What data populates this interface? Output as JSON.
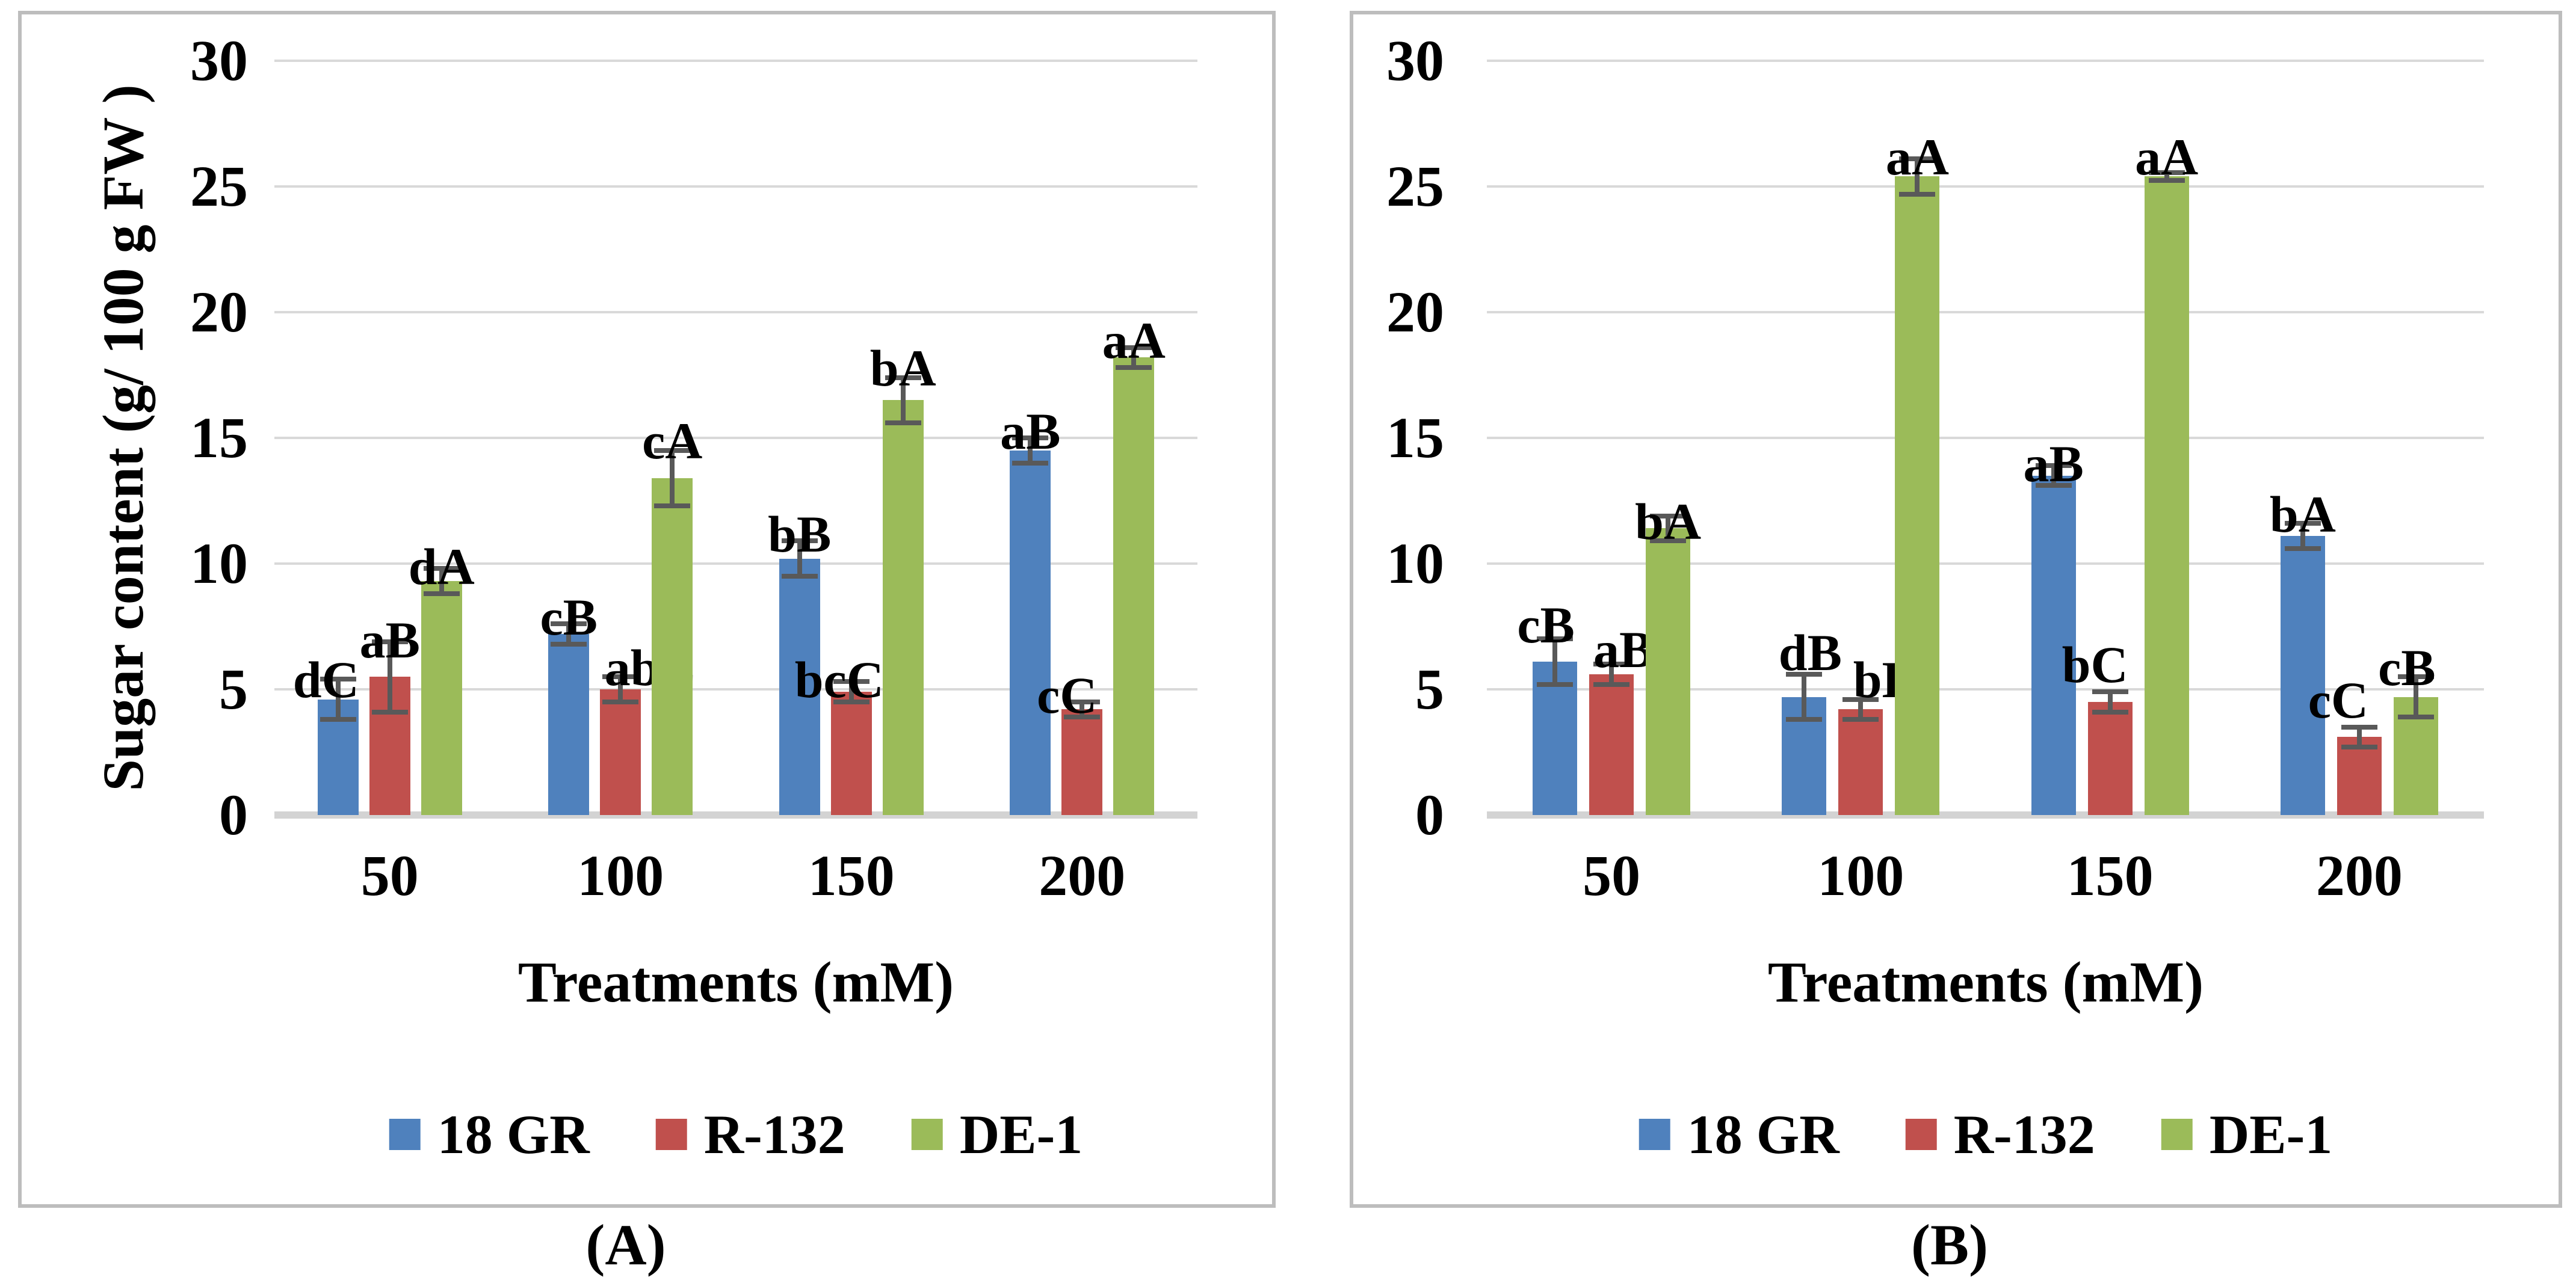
{
  "figure": {
    "captions": {
      "a": "(A)",
      "b": "(B)"
    },
    "colors": {
      "series_18gr": "#4F81BD",
      "series_r132": "#C0504D",
      "series_de1": "#9BBB59",
      "gridline": "#D9D9D9",
      "baseline": "#D3D3D3",
      "error_bar": "#595959",
      "panel_border": "#BDBDBD",
      "text": "#000000",
      "background": "#FFFFFF"
    }
  },
  "chart_data": [
    {
      "id": "A",
      "type": "bar",
      "title": "",
      "xlabel": "Treatments (mM)",
      "ylabel": "Sugar content (g/ 100 g FW )",
      "ylim": [
        0,
        30
      ],
      "yticks": [
        0,
        5,
        10,
        15,
        20,
        25,
        30
      ],
      "grid": true,
      "legend_position": "bottom",
      "categories": [
        "50",
        "100",
        "150",
        "200"
      ],
      "series": [
        {
          "name": "18 GR",
          "color": "#4F81BD",
          "values": [
            4.6,
            7.2,
            10.2,
            14.5
          ],
          "errors": [
            0.8,
            0.4,
            0.7,
            0.5
          ],
          "letters": [
            "dC",
            "cB",
            "bB",
            "aB"
          ],
          "letter_y": [
            6.4,
            8.9,
            12.2,
            16.3
          ],
          "letter_dx": [
            -20,
            0,
            0,
            0
          ]
        },
        {
          "name": "R-132",
          "color": "#C0504D",
          "values": [
            5.5,
            5.0,
            4.9,
            4.2
          ],
          "errors": [
            1.4,
            0.5,
            0.4,
            0.3
          ],
          "letters": [
            "aB",
            "abC",
            "bcC",
            "cC"
          ],
          "letter_y": [
            8.0,
            6.9,
            6.4,
            5.8
          ],
          "letter_dx": [
            0,
            50,
            -20,
            -25
          ]
        },
        {
          "name": "DE-1",
          "color": "#9BBB59",
          "values": [
            9.3,
            13.4,
            16.5,
            18.2
          ],
          "errors": [
            0.5,
            1.1,
            0.9,
            0.4
          ],
          "letters": [
            "dA",
            "cA",
            "bA",
            "aA"
          ],
          "letter_y": [
            10.9,
            15.9,
            18.8,
            19.9
          ],
          "letter_dx": [
            0,
            0,
            0,
            0
          ]
        }
      ],
      "caption": "(A)"
    },
    {
      "id": "B",
      "type": "bar",
      "title": "",
      "xlabel": "Treatments (mM)",
      "ylabel": "",
      "ylim": [
        0,
        30
      ],
      "yticks": [
        0,
        5,
        10,
        15,
        20,
        25,
        30
      ],
      "grid": true,
      "legend_position": "bottom",
      "categories": [
        "50",
        "100",
        "150",
        "200"
      ],
      "series": [
        {
          "name": "18 GR",
          "color": "#4F81BD",
          "values": [
            6.1,
            4.7,
            13.5,
            11.1
          ],
          "errors": [
            0.9,
            0.9,
            0.4,
            0.5
          ],
          "letters": [
            "cB",
            "dB",
            "aB",
            "bA"
          ],
          "letter_y": [
            8.6,
            7.5,
            15.0,
            13.0
          ],
          "letter_dx": [
            -15,
            10,
            0,
            0
          ]
        },
        {
          "name": "R-132",
          "color": "#C0504D",
          "values": [
            5.6,
            4.2,
            4.5,
            3.1
          ],
          "errors": [
            0.4,
            0.4,
            0.4,
            0.4
          ],
          "letters": [
            "aB",
            "bB",
            "bC",
            "cC"
          ],
          "letter_y": [
            7.6,
            6.4,
            7.0,
            5.6
          ],
          "letter_dx": [
            20,
            40,
            -25,
            -35
          ]
        },
        {
          "name": "DE-1",
          "color": "#9BBB59",
          "values": [
            11.4,
            25.4,
            25.4,
            4.7
          ],
          "errors": [
            0.5,
            0.7,
            0.15,
            0.8
          ],
          "letters": [
            "bA",
            "aA",
            "aA",
            "cB"
          ],
          "letter_y": [
            12.7,
            27.2,
            27.2,
            6.9
          ],
          "letter_dx": [
            0,
            0,
            0,
            -15
          ]
        }
      ],
      "caption": "(B)"
    }
  ]
}
